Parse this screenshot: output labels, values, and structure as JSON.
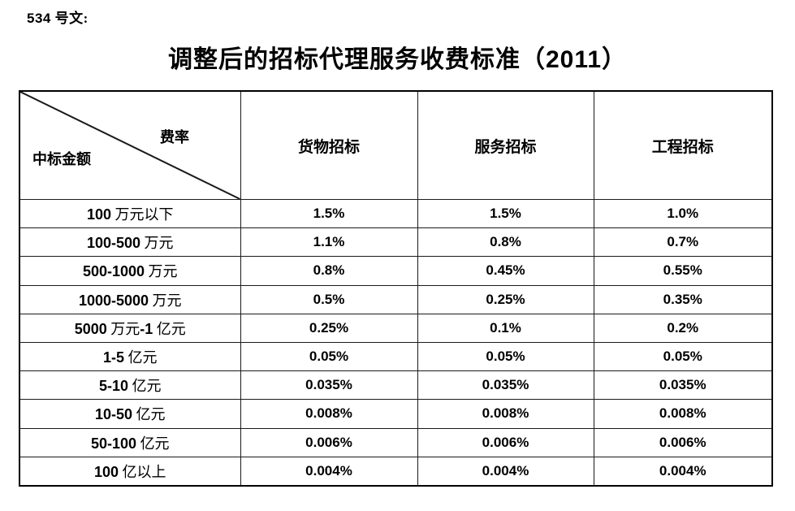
{
  "page": {
    "doc_label": "534 号文:",
    "title": "调整后的招标代理服务收费标准（2011）"
  },
  "table": {
    "corner": {
      "top_right": "费率",
      "bottom_left": "中标金额"
    },
    "columns": [
      "货物招标",
      "服务招标",
      "工程招标"
    ],
    "rows": [
      {
        "label": "100 万元以下",
        "values": [
          "1.5%",
          "1.5%",
          "1.0%"
        ]
      },
      {
        "label": "100-500 万元",
        "values": [
          "1.1%",
          "0.8%",
          "0.7%"
        ]
      },
      {
        "label": "500-1000 万元",
        "values": [
          "0.8%",
          "0.45%",
          "0.55%"
        ]
      },
      {
        "label": "1000-5000 万元",
        "values": [
          "0.5%",
          "0.25%",
          "0.35%"
        ]
      },
      {
        "label": "5000 万元-1 亿元",
        "values": [
          "0.25%",
          "0.1%",
          "0.2%"
        ]
      },
      {
        "label": "1-5 亿元",
        "values": [
          "0.05%",
          "0.05%",
          "0.05%"
        ]
      },
      {
        "label": "5-10 亿元",
        "values": [
          "0.035%",
          "0.035%",
          "0.035%"
        ]
      },
      {
        "label": "10-50 亿元",
        "values": [
          "0.008%",
          "0.008%",
          "0.008%"
        ]
      },
      {
        "label": "50-100 亿元",
        "values": [
          "0.006%",
          "0.006%",
          "0.006%"
        ]
      },
      {
        "label": "100 亿以上",
        "values": [
          "0.004%",
          "0.004%",
          "0.004%"
        ]
      }
    ],
    "colors": {
      "border": "#1a1a1a",
      "text": "#000000",
      "background": "#ffffff"
    }
  }
}
